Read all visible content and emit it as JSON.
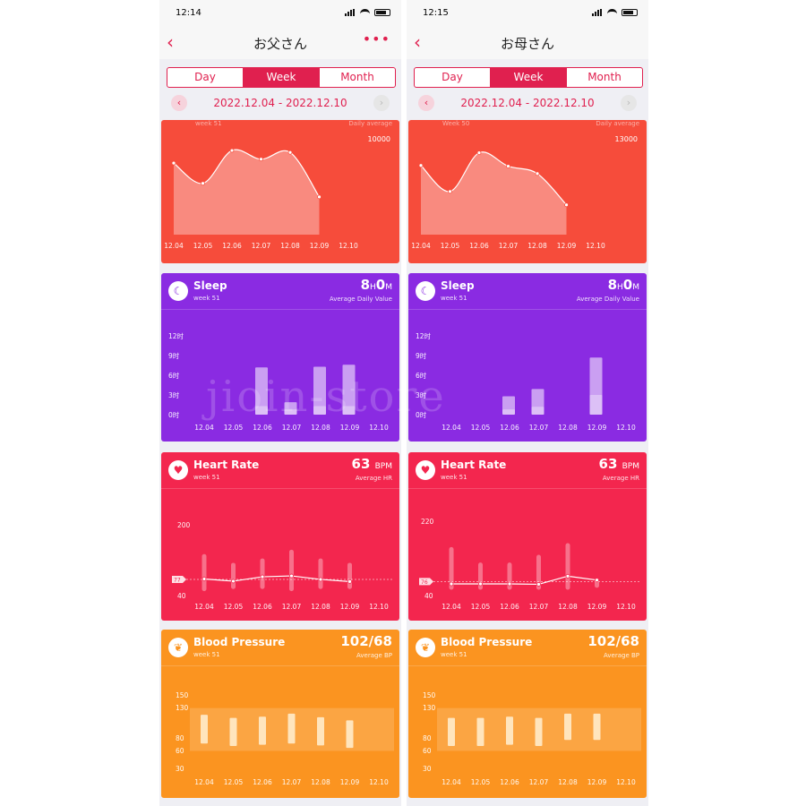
{
  "watermark": "jioin-store",
  "colors": {
    "accent": "#e0204f",
    "steps_card": "#f64c3b",
    "sleep_card": "#8a2be2",
    "heart_card": "#f3264e",
    "bp_card": "#fb9420"
  },
  "phones": [
    {
      "status_time": "12:14",
      "title": "お父さん",
      "back_icon": "chevron-left-icon",
      "show_more": true,
      "more_label": "•••",
      "tabs": [
        {
          "label": "Day",
          "active": false
        },
        {
          "label": "Week",
          "active": true
        },
        {
          "label": "Month",
          "active": false
        }
      ],
      "date_range": "2022.12.04 - 2022.12.10",
      "steps": {
        "week_label": "week 51",
        "sub_label": "Daily average",
        "max_label": "10000",
        "chart_data": {
          "type": "area",
          "categories": [
            "12.04",
            "12.05",
            "12.06",
            "12.07",
            "12.08",
            "12.09",
            "12.10"
          ],
          "values": [
            7400,
            5300,
            8700,
            7800,
            8500,
            3900,
            null
          ],
          "ylim": [
            0,
            10000
          ]
        }
      },
      "sleep": {
        "title": "Sleep",
        "week_label": "week 51",
        "value_h": "8",
        "h_unit": "H",
        "value_m": "0",
        "m_unit": "M",
        "sub_label": "Average Daily Value",
        "yticks": [
          "12时",
          "9时",
          "6时",
          "3时",
          "0时"
        ],
        "chart_data": {
          "type": "bar",
          "categories": [
            "12.04",
            "12.05",
            "12.06",
            "12.07",
            "12.08",
            "12.09",
            "12.10"
          ],
          "series": [
            {
              "values": [
                0,
                0,
                7.2,
                1.9,
                7.3,
                7.6,
                0
              ]
            },
            {
              "values": [
                0,
                0,
                1.3,
                0.8,
                1.3,
                1.3,
                0
              ]
            }
          ],
          "ylim": [
            0,
            12
          ]
        }
      },
      "heart": {
        "title": "Heart Rate",
        "week_label": "week 51",
        "value": "63",
        "unit": "BPM",
        "sub_label": "Average HR",
        "ytop": "200",
        "ybottom": "40",
        "marker": "77",
        "chart_data": {
          "type": "line",
          "categories": [
            "12.04",
            "12.05",
            "12.06",
            "12.07",
            "12.08",
            "12.09",
            "12.10"
          ],
          "avg": [
            78,
            73,
            83,
            85,
            77,
            72,
            null
          ],
          "low": [
            50,
            55,
            55,
            50,
            55,
            55,
            null
          ],
          "high": [
            135,
            115,
            125,
            145,
            125,
            115,
            null
          ],
          "ylim": [
            40,
            200
          ]
        }
      },
      "bp": {
        "title": "Blood Pressure",
        "week_label": "week 51",
        "value": "102/68",
        "sub_label": "Average BP",
        "yticks": [
          "150",
          "130",
          "80",
          "60",
          "30"
        ],
        "chart_data": {
          "type": "bar",
          "categories": [
            "12.04",
            "12.05",
            "12.06",
            "12.07",
            "12.08",
            "12.09",
            "12.10"
          ],
          "systolic": [
            119,
            114,
            116,
            121,
            115,
            110,
            null
          ],
          "diastolic": [
            72,
            68,
            70,
            72,
            69,
            65,
            null
          ],
          "ylim": [
            30,
            150
          ]
        }
      }
    },
    {
      "status_time": "12:15",
      "title": "お母さん",
      "back_icon": "chevron-left-icon",
      "show_more": false,
      "more_label": "",
      "tabs": [
        {
          "label": "Day",
          "active": false
        },
        {
          "label": "Week",
          "active": true
        },
        {
          "label": "Month",
          "active": false
        }
      ],
      "date_range": "2022.12.04 - 2022.12.10",
      "steps": {
        "week_label": "Week 50",
        "sub_label": "Daily average",
        "max_label": "13000",
        "chart_data": {
          "type": "area",
          "categories": [
            "12.04",
            "12.05",
            "12.06",
            "12.07",
            "12.08",
            "12.09",
            "12.10"
          ],
          "values": [
            9300,
            5800,
            11000,
            9200,
            8200,
            4000,
            null
          ],
          "ylim": [
            0,
            13000
          ]
        }
      },
      "sleep": {
        "title": "Sleep",
        "week_label": "week 51",
        "value_h": "8",
        "h_unit": "H",
        "value_m": "0",
        "m_unit": "M",
        "sub_label": "Average Daily Value",
        "yticks": [
          "12时",
          "9时",
          "6时",
          "3时",
          "0时"
        ],
        "chart_data": {
          "type": "bar",
          "categories": [
            "12.04",
            "12.05",
            "12.06",
            "12.07",
            "12.08",
            "12.09",
            "12.10"
          ],
          "series": [
            {
              "values": [
                0,
                0,
                2.8,
                3.9,
                0,
                8.7,
                0
              ]
            },
            {
              "values": [
                0,
                0,
                0.8,
                1.2,
                0,
                3.0,
                0
              ]
            }
          ],
          "ylim": [
            0,
            12
          ]
        }
      },
      "heart": {
        "title": "Heart Rate",
        "week_label": "week 51",
        "value": "63",
        "unit": "BPM",
        "sub_label": "Average HR",
        "ytop": "220",
        "ybottom": "40",
        "marker": "76",
        "chart_data": {
          "type": "line",
          "categories": [
            "12.04",
            "12.05",
            "12.06",
            "12.07",
            "12.08",
            "12.09",
            "12.10"
          ],
          "avg": [
            70,
            70,
            70,
            69,
            90,
            80,
            null
          ],
          "low": [
            55,
            55,
            55,
            55,
            55,
            60,
            null
          ],
          "high": [
            165,
            125,
            125,
            145,
            175,
            85,
            null
          ],
          "ylim": [
            40,
            220
          ]
        }
      },
      "bp": {
        "title": "Blood Pressure",
        "week_label": "week 51",
        "value": "102/68",
        "sub_label": "Average BP",
        "yticks": [
          "150",
          "130",
          "80",
          "60",
          "30"
        ],
        "chart_data": {
          "type": "bar",
          "categories": [
            "12.04",
            "12.05",
            "12.06",
            "12.07",
            "12.08",
            "12.09",
            "12.10"
          ],
          "systolic": [
            114,
            114,
            116,
            114,
            121,
            121,
            null
          ],
          "diastolic": [
            68,
            68,
            70,
            68,
            78,
            78,
            null
          ],
          "ylim": [
            30,
            150
          ]
        }
      }
    }
  ]
}
